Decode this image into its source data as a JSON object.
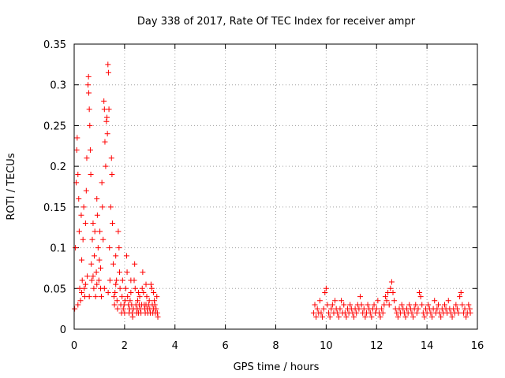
{
  "chart_data": {
    "type": "scatter",
    "title": "Day 338 of 2017, Rate Of TEC Index for receiver ampr",
    "xlabel": "GPS time / hours",
    "ylabel": "ROTI / TECUs",
    "xlim": [
      0,
      16
    ],
    "ylim": [
      0,
      0.35
    ],
    "xticks": [
      0,
      2,
      4,
      6,
      8,
      10,
      12,
      14,
      16
    ],
    "yticks": [
      0,
      0.05,
      0.1,
      0.15,
      0.2,
      0.25,
      0.3,
      0.35
    ],
    "xtick_labels": [
      "0",
      "2",
      "4",
      "6",
      "8",
      "10",
      "12",
      "14",
      "16"
    ],
    "ytick_labels": [
      "0",
      "0.05",
      "0.1",
      "0.15",
      "0.2",
      "0.25",
      "0.3",
      "0.35"
    ],
    "grid": true,
    "marker": "+",
    "color": "#ff0000",
    "series": [
      {
        "name": "ROTI",
        "points": [
          [
            0.02,
            0.025
          ],
          [
            0.05,
            0.1
          ],
          [
            0.08,
            0.18
          ],
          [
            0.1,
            0.22
          ],
          [
            0.12,
            0.235
          ],
          [
            0.15,
            0.19
          ],
          [
            0.18,
            0.16
          ],
          [
            0.2,
            0.12
          ],
          [
            0.22,
            0.05
          ],
          [
            0.25,
            0.035
          ],
          [
            0.28,
            0.14
          ],
          [
            0.3,
            0.085
          ],
          [
            0.32,
            0.06
          ],
          [
            0.35,
            0.11
          ],
          [
            0.38,
            0.15
          ],
          [
            0.4,
            0.05
          ],
          [
            0.42,
            0.04
          ],
          [
            0.45,
            0.13
          ],
          [
            0.48,
            0.17
          ],
          [
            0.5,
            0.21
          ],
          [
            0.52,
            0.065
          ],
          [
            0.55,
            0.3
          ],
          [
            0.57,
            0.31
          ],
          [
            0.58,
            0.29
          ],
          [
            0.6,
            0.27
          ],
          [
            0.62,
            0.25
          ],
          [
            0.64,
            0.22
          ],
          [
            0.66,
            0.19
          ],
          [
            0.68,
            0.08
          ],
          [
            0.7,
            0.06
          ],
          [
            0.72,
            0.11
          ],
          [
            0.75,
            0.13
          ],
          [
            0.78,
            0.05
          ],
          [
            0.8,
            0.09
          ],
          [
            0.82,
            0.12
          ],
          [
            0.85,
            0.04
          ],
          [
            0.88,
            0.07
          ],
          [
            0.9,
            0.16
          ],
          [
            0.92,
            0.14
          ],
          [
            0.95,
            0.1
          ],
          [
            0.98,
            0.06
          ],
          [
            1.0,
            0.085
          ],
          [
            1.02,
            0.12
          ],
          [
            1.05,
            0.05
          ],
          [
            1.08,
            0.04
          ],
          [
            1.1,
            0.18
          ],
          [
            1.12,
            0.15
          ],
          [
            1.15,
            0.11
          ],
          [
            1.18,
            0.28
          ],
          [
            1.2,
            0.27
          ],
          [
            1.22,
            0.23
          ],
          [
            1.25,
            0.2
          ],
          [
            1.28,
            0.255
          ],
          [
            1.3,
            0.26
          ],
          [
            1.32,
            0.24
          ],
          [
            1.34,
            0.325
          ],
          [
            1.36,
            0.315
          ],
          [
            1.38,
            0.27
          ],
          [
            1.4,
            0.1
          ],
          [
            1.42,
            0.06
          ],
          [
            1.45,
            0.15
          ],
          [
            1.48,
            0.21
          ],
          [
            1.5,
            0.19
          ],
          [
            1.52,
            0.13
          ],
          [
            1.55,
            0.08
          ],
          [
            1.58,
            0.04
          ],
          [
            1.6,
            0.03
          ],
          [
            1.62,
            0.045
          ],
          [
            1.65,
            0.09
          ],
          [
            1.68,
            0.06
          ],
          [
            1.7,
            0.035
          ],
          [
            1.72,
            0.025
          ],
          [
            1.75,
            0.12
          ],
          [
            1.78,
            0.1
          ],
          [
            1.8,
            0.07
          ],
          [
            1.82,
            0.05
          ],
          [
            1.85,
            0.03
          ],
          [
            1.88,
            0.02
          ],
          [
            1.9,
            0.04
          ],
          [
            1.92,
            0.06
          ],
          [
            1.95,
            0.025
          ],
          [
            1.98,
            0.03
          ],
          [
            2.0,
            0.02
          ],
          [
            2.02,
            0.035
          ],
          [
            2.05,
            0.05
          ],
          [
            2.08,
            0.09
          ],
          [
            2.1,
            0.07
          ],
          [
            2.12,
            0.04
          ],
          [
            2.15,
            0.03
          ],
          [
            2.18,
            0.02
          ],
          [
            2.2,
            0.025
          ],
          [
            2.22,
            0.035
          ],
          [
            2.25,
            0.045
          ],
          [
            2.28,
            0.03
          ],
          [
            2.3,
            0.02
          ],
          [
            2.32,
            0.015
          ],
          [
            2.35,
            0.025
          ],
          [
            2.38,
            0.06
          ],
          [
            2.4,
            0.08
          ],
          [
            2.42,
            0.05
          ],
          [
            2.45,
            0.03
          ],
          [
            2.48,
            0.02
          ],
          [
            2.5,
            0.025
          ],
          [
            2.52,
            0.035
          ],
          [
            2.55,
            0.02
          ],
          [
            2.58,
            0.03
          ],
          [
            2.6,
            0.04
          ],
          [
            2.62,
            0.025
          ],
          [
            2.65,
            0.02
          ],
          [
            2.68,
            0.03
          ],
          [
            2.7,
            0.05
          ],
          [
            2.72,
            0.07
          ],
          [
            2.75,
            0.045
          ],
          [
            2.78,
            0.03
          ],
          [
            2.8,
            0.025
          ],
          [
            2.82,
            0.02
          ],
          [
            2.85,
            0.03
          ],
          [
            2.88,
            0.04
          ],
          [
            2.9,
            0.025
          ],
          [
            2.92,
            0.02
          ],
          [
            2.95,
            0.03
          ],
          [
            2.98,
            0.035
          ],
          [
            3.0,
            0.025
          ],
          [
            3.02,
            0.02
          ],
          [
            3.05,
            0.055
          ],
          [
            3.08,
            0.05
          ],
          [
            3.1,
            0.03
          ],
          [
            3.12,
            0.02
          ],
          [
            3.15,
            0.025
          ],
          [
            3.18,
            0.035
          ],
          [
            3.2,
            0.03
          ],
          [
            3.22,
            0.02
          ],
          [
            3.25,
            0.025
          ],
          [
            3.28,
            0.04
          ],
          [
            3.3,
            0.02
          ],
          [
            3.32,
            0.015
          ],
          [
            0.3,
            0.045
          ],
          [
            0.6,
            0.04
          ],
          [
            0.9,
            0.055
          ],
          [
            1.2,
            0.05
          ],
          [
            0.15,
            0.03
          ],
          [
            0.45,
            0.055
          ],
          [
            0.75,
            0.065
          ],
          [
            1.05,
            0.075
          ],
          [
            1.35,
            0.045
          ],
          [
            1.65,
            0.055
          ],
          [
            2.25,
            0.06
          ],
          [
            2.55,
            0.045
          ],
          [
            2.85,
            0.055
          ],
          [
            3.15,
            0.045
          ],
          [
            9.5,
            0.02
          ],
          [
            9.55,
            0.03
          ],
          [
            9.6,
            0.015
          ],
          [
            9.65,
            0.025
          ],
          [
            9.7,
            0.02
          ],
          [
            9.75,
            0.035
          ],
          [
            9.8,
            0.02
          ],
          [
            9.85,
            0.015
          ],
          [
            9.9,
            0.025
          ],
          [
            9.95,
            0.045
          ],
          [
            10.0,
            0.05
          ],
          [
            10.05,
            0.03
          ],
          [
            10.1,
            0.02
          ],
          [
            10.15,
            0.015
          ],
          [
            10.2,
            0.025
          ],
          [
            10.25,
            0.03
          ],
          [
            10.3,
            0.02
          ],
          [
            10.35,
            0.035
          ],
          [
            10.4,
            0.025
          ],
          [
            10.45,
            0.02
          ],
          [
            10.5,
            0.015
          ],
          [
            10.55,
            0.025
          ],
          [
            10.6,
            0.035
          ],
          [
            10.65,
            0.02
          ],
          [
            10.7,
            0.03
          ],
          [
            10.75,
            0.02
          ],
          [
            10.8,
            0.015
          ],
          [
            10.85,
            0.025
          ],
          [
            10.9,
            0.02
          ],
          [
            10.95,
            0.03
          ],
          [
            11.0,
            0.025
          ],
          [
            11.05,
            0.02
          ],
          [
            11.1,
            0.015
          ],
          [
            11.15,
            0.025
          ],
          [
            11.2,
            0.02
          ],
          [
            11.25,
            0.03
          ],
          [
            11.3,
            0.025
          ],
          [
            11.35,
            0.04
          ],
          [
            11.4,
            0.03
          ],
          [
            11.45,
            0.02
          ],
          [
            11.5,
            0.025
          ],
          [
            11.55,
            0.015
          ],
          [
            11.6,
            0.02
          ],
          [
            11.65,
            0.03
          ],
          [
            11.7,
            0.025
          ],
          [
            11.75,
            0.02
          ],
          [
            11.8,
            0.015
          ],
          [
            11.85,
            0.025
          ],
          [
            11.9,
            0.03
          ],
          [
            11.95,
            0.02
          ],
          [
            12.0,
            0.025
          ],
          [
            12.05,
            0.035
          ],
          [
            12.1,
            0.02
          ],
          [
            12.15,
            0.015
          ],
          [
            12.2,
            0.025
          ],
          [
            12.25,
            0.02
          ],
          [
            12.3,
            0.03
          ],
          [
            12.35,
            0.04
          ],
          [
            12.4,
            0.035
          ],
          [
            12.45,
            0.045
          ],
          [
            12.5,
            0.03
          ],
          [
            12.55,
            0.05
          ],
          [
            12.6,
            0.058
          ],
          [
            12.65,
            0.045
          ],
          [
            12.7,
            0.035
          ],
          [
            12.75,
            0.025
          ],
          [
            12.8,
            0.02
          ],
          [
            12.85,
            0.015
          ],
          [
            12.9,
            0.025
          ],
          [
            12.95,
            0.02
          ],
          [
            13.0,
            0.03
          ],
          [
            13.05,
            0.025
          ],
          [
            13.1,
            0.02
          ],
          [
            13.15,
            0.015
          ],
          [
            13.2,
            0.025
          ],
          [
            13.25,
            0.02
          ],
          [
            13.3,
            0.03
          ],
          [
            13.35,
            0.025
          ],
          [
            13.4,
            0.02
          ],
          [
            13.45,
            0.015
          ],
          [
            13.5,
            0.025
          ],
          [
            13.55,
            0.03
          ],
          [
            13.6,
            0.02
          ],
          [
            13.65,
            0.025
          ],
          [
            13.7,
            0.045
          ],
          [
            13.75,
            0.04
          ],
          [
            13.8,
            0.03
          ],
          [
            13.85,
            0.02
          ],
          [
            13.9,
            0.015
          ],
          [
            13.95,
            0.025
          ],
          [
            14.0,
            0.02
          ],
          [
            14.05,
            0.03
          ],
          [
            14.1,
            0.025
          ],
          [
            14.15,
            0.02
          ],
          [
            14.2,
            0.015
          ],
          [
            14.25,
            0.025
          ],
          [
            14.3,
            0.035
          ],
          [
            14.35,
            0.02
          ],
          [
            14.4,
            0.025
          ],
          [
            14.45,
            0.03
          ],
          [
            14.5,
            0.02
          ],
          [
            14.55,
            0.015
          ],
          [
            14.6,
            0.025
          ],
          [
            14.65,
            0.02
          ],
          [
            14.7,
            0.03
          ],
          [
            14.75,
            0.025
          ],
          [
            14.8,
            0.02
          ],
          [
            14.85,
            0.035
          ],
          [
            14.9,
            0.025
          ],
          [
            14.95,
            0.02
          ],
          [
            15.0,
            0.015
          ],
          [
            15.05,
            0.025
          ],
          [
            15.1,
            0.02
          ],
          [
            15.15,
            0.03
          ],
          [
            15.2,
            0.025
          ],
          [
            15.25,
            0.02
          ],
          [
            15.3,
            0.04
          ],
          [
            15.35,
            0.045
          ],
          [
            15.4,
            0.03
          ],
          [
            15.45,
            0.02
          ],
          [
            15.5,
            0.025
          ],
          [
            15.55,
            0.015
          ],
          [
            15.6,
            0.02
          ],
          [
            15.65,
            0.03
          ],
          [
            15.7,
            0.025
          ],
          [
            15.72,
            0.02
          ]
        ]
      }
    ]
  }
}
